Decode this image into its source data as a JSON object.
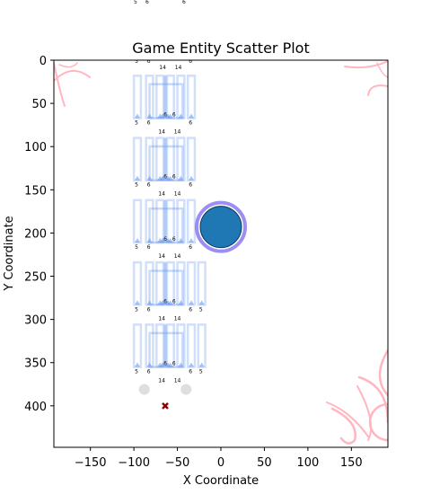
{
  "chart_data": {
    "type": "scatter",
    "title": "Game Entity Scatter Plot",
    "xlabel": "X Coordinate",
    "ylabel": "Y Coordinate",
    "xlim": [
      -192,
      192
    ],
    "ylim": [
      448,
      0
    ],
    "y_inverted": true,
    "x_ticks": [
      -150,
      -100,
      -50,
      0,
      50,
      100,
      150
    ],
    "y_ticks": [
      0,
      50,
      100,
      150,
      200,
      250,
      300,
      350,
      400
    ],
    "grid": false,
    "colors": {
      "player": "#1f77b4",
      "player_ring": "#7b68ee",
      "structure": "#6495ed",
      "marker": "#8b0000",
      "orb": "#c8c8c8",
      "corner_ornament": "#ffb6c1"
    },
    "series": [
      {
        "role": "player",
        "points": [
          {
            "x": 0,
            "y": 193
          }
        ]
      },
      {
        "role": "target",
        "marker": "x",
        "points": [
          {
            "x": -64,
            "y": 400
          }
        ]
      },
      {
        "role": "orbs",
        "points": [
          {
            "x": -88,
            "y": 381
          },
          {
            "x": -40,
            "y": 381
          }
        ]
      },
      {
        "role": "structure",
        "column_x": [
          -100,
          -86,
          -74,
          -62,
          -50,
          -38,
          -26
        ],
        "rows": [
          {
            "y_top": 18,
            "y_bottom": 67,
            "cols": 6
          },
          {
            "y_top": 90,
            "y_bottom": 139,
            "cols": 6
          },
          {
            "y_top": 162,
            "y_bottom": 211,
            "cols": 6
          },
          {
            "y_top": 234,
            "y_bottom": 283,
            "cols": 7
          },
          {
            "y_top": 306,
            "y_bottom": 355,
            "cols": 7
          }
        ]
      }
    ],
    "structure_labels": [
      "5",
      "6",
      "6",
      "6",
      "14",
      "14",
      "6",
      "6",
      "5"
    ],
    "above_axes_labels": [
      "5",
      "6",
      "6"
    ]
  }
}
